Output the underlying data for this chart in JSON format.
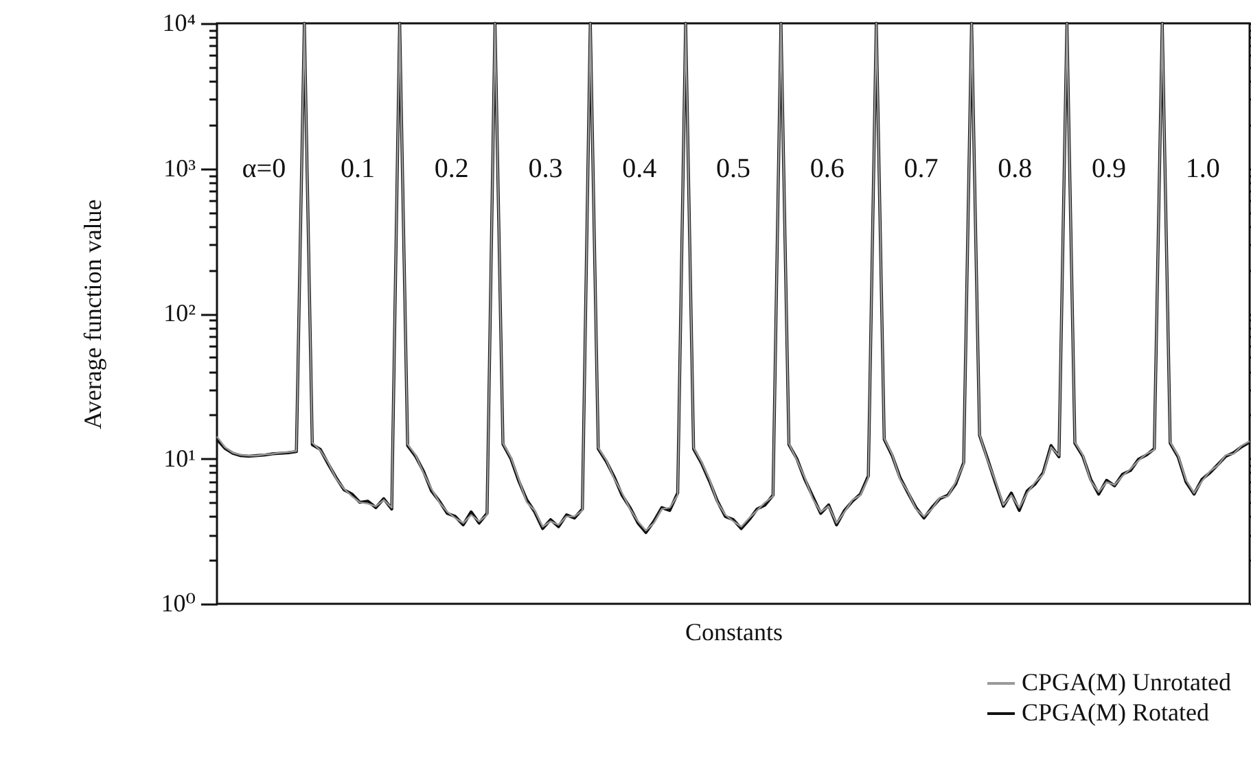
{
  "chart_data": {
    "type": "line",
    "xlabel": "Constants",
    "ylabel": "Average function value",
    "log": "y",
    "ylim": [
      1,
      10000
    ],
    "tick_labels": "y",
    "grid": false,
    "legend": "bottom right",
    "marker": "none",
    "line_style": "solid",
    "yticks": [
      {
        "value": 1,
        "label": "10⁰"
      },
      {
        "value": 10,
        "label": "10¹"
      },
      {
        "value": 100,
        "label": "10²"
      },
      {
        "value": 1000,
        "label": "10³"
      },
      {
        "value": 10000,
        "label": "10⁴"
      },
      {
        "value": 2,
        "label": null
      },
      {
        "value": 3,
        "label": null
      },
      {
        "value": 4,
        "label": null
      },
      {
        "value": 5,
        "label": null
      },
      {
        "value": 6,
        "label": null
      },
      {
        "value": 7,
        "label": null
      },
      {
        "value": 8,
        "label": null
      },
      {
        "value": 9,
        "label": null
      },
      {
        "value": 20,
        "label": null
      },
      {
        "value": 30,
        "label": null
      },
      {
        "value": 40,
        "label": null
      },
      {
        "value": 50,
        "label": null
      },
      {
        "value": 60,
        "label": null
      },
      {
        "value": 70,
        "label": null
      },
      {
        "value": 80,
        "label": null
      },
      {
        "value": 90,
        "label": null
      },
      {
        "value": 200,
        "label": null
      },
      {
        "value": 300,
        "label": null
      },
      {
        "value": 400,
        "label": null
      },
      {
        "value": 500,
        "label": null
      },
      {
        "value": 600,
        "label": null
      },
      {
        "value": 700,
        "label": null
      },
      {
        "value": 800,
        "label": null
      },
      {
        "value": 900,
        "label": null
      },
      {
        "value": 2000,
        "label": null
      },
      {
        "value": 3000,
        "label": null
      },
      {
        "value": 4000,
        "label": null
      },
      {
        "value": 5000,
        "label": null
      },
      {
        "value": 6000,
        "label": null
      },
      {
        "value": 7000,
        "label": null
      },
      {
        "value": 8000,
        "label": null
      },
      {
        "value": 9000,
        "label": null
      }
    ],
    "categories": [
      null,
      null,
      null,
      null,
      null,
      null,
      null,
      null,
      null,
      null,
      null,
      null,
      null,
      null,
      null,
      null,
      null,
      null,
      null,
      null,
      null,
      null,
      null,
      null,
      null,
      null,
      null,
      null,
      null,
      null,
      null,
      null,
      null,
      null,
      null,
      null,
      null,
      null,
      null,
      null,
      null,
      null,
      null,
      null,
      null,
      null,
      null,
      null,
      null,
      null,
      null,
      null,
      null,
      null,
      null,
      null,
      null,
      null,
      null,
      null,
      null,
      null,
      null,
      null,
      null,
      null,
      null,
      null,
      null,
      null,
      null,
      null,
      null,
      null,
      null,
      null,
      null,
      null,
      null,
      null,
      null,
      null,
      null,
      null,
      null,
      null,
      null,
      null,
      null,
      null,
      null,
      null,
      null,
      null,
      null,
      null,
      null,
      null,
      null,
      null,
      null,
      null,
      null,
      null,
      null,
      null,
      null,
      null,
      null,
      null,
      null,
      null,
      null,
      null,
      null,
      null,
      null,
      null,
      null,
      null,
      null,
      null,
      null,
      null,
      null,
      null,
      null,
      null,
      null,
      null,
      null
    ],
    "series": [
      {
        "name": "CPGA(M) Unrotated",
        "color": "#9a9a9a",
        "values": [
          14.2,
          12.0,
          11.0,
          10.6,
          10.5,
          10.5,
          10.7,
          10.8,
          11.0,
          11.1,
          11.3,
          10000,
          12.9,
          11.4,
          9.4,
          7.3,
          6.2,
          5.5,
          5.0,
          4.9,
          4.7,
          5.2,
          4.6,
          10000,
          12.6,
          10.6,
          8.0,
          6.2,
          5.0,
          4.3,
          3.9,
          3.6,
          4.1,
          3.7,
          4.1,
          10000,
          12.8,
          10.2,
          7.2,
          5.0,
          4.4,
          3.4,
          3.7,
          3.5,
          4.0,
          4.0,
          4.4,
          10000,
          11.9,
          9.8,
          7.3,
          5.8,
          4.5,
          3.7,
          3.2,
          3.6,
          4.5,
          4.6,
          5.6,
          10000,
          11.9,
          9.5,
          7.2,
          5.0,
          4.1,
          3.7,
          3.4,
          3.9,
          4.4,
          5.0,
          5.5,
          10000,
          12.7,
          9.8,
          7.4,
          5.3,
          4.3,
          4.7,
          3.6,
          4.3,
          5.2,
          5.6,
          7.4,
          10000,
          13.8,
          10.7,
          7.2,
          5.9,
          4.5,
          4.0,
          4.5,
          5.4,
          5.5,
          6.9,
          9.2,
          10000,
          14.7,
          9.8,
          7.0,
          4.8,
          5.6,
          4.6,
          5.8,
          6.9,
          7.8,
          12.0,
          10.5,
          10000,
          13.0,
          10.6,
          7.0,
          5.9,
          6.9,
          6.6,
          7.6,
          8.5,
          9.7,
          10.8,
          11.5,
          10000,
          13.0,
          10.5,
          7.1,
          5.8,
          7.0,
          8.2,
          9.0,
          10.6,
          10.8,
          12.3,
          13.2
        ]
      },
      {
        "name": "CPGA(M) Rotated",
        "color": "#111111",
        "values": [
          13.6,
          11.8,
          10.9,
          10.5,
          10.4,
          10.5,
          10.6,
          10.8,
          10.9,
          11.0,
          11.2,
          10000,
          12.5,
          11.6,
          9.2,
          7.4,
          6.1,
          5.7,
          5.0,
          5.1,
          4.6,
          5.3,
          4.5,
          10000,
          12.3,
          10.4,
          8.2,
          6.0,
          5.1,
          4.2,
          4.0,
          3.5,
          4.3,
          3.6,
          4.2,
          10000,
          12.6,
          10.0,
          7.0,
          5.2,
          4.3,
          3.3,
          3.8,
          3.4,
          4.1,
          3.9,
          4.5,
          10000,
          11.7,
          9.6,
          7.5,
          5.6,
          4.6,
          3.6,
          3.1,
          3.7,
          4.6,
          4.4,
          5.8,
          10000,
          11.7,
          9.3,
          7.0,
          5.1,
          4.0,
          3.8,
          3.3,
          3.8,
          4.5,
          4.8,
          5.6,
          10000,
          12.5,
          10.0,
          7.2,
          5.5,
          4.2,
          4.8,
          3.5,
          4.4,
          5.1,
          5.7,
          7.6,
          10000,
          13.6,
          10.5,
          7.4,
          5.8,
          4.6,
          3.9,
          4.6,
          5.3,
          5.6,
          6.7,
          9.4,
          10000,
          14.5,
          10.0,
          6.8,
          4.7,
          5.8,
          4.4,
          6.0,
          6.7,
          8.0,
          12.3,
          10.3,
          10000,
          12.8,
          10.4,
          7.2,
          5.7,
          7.1,
          6.5,
          7.8,
          8.3,
          9.9,
          10.6,
          11.7,
          10000,
          12.8,
          10.3,
          6.9,
          5.7,
          7.2,
          8.0,
          9.1,
          10.4,
          11.0,
          12.1,
          13.0
        ]
      }
    ],
    "annotations": [
      "α=0",
      "0.1",
      "0.2",
      "0.3",
      "0.4",
      "0.5",
      "0.6",
      "0.7",
      "0.8",
      "0.9",
      "1.0"
    ]
  }
}
